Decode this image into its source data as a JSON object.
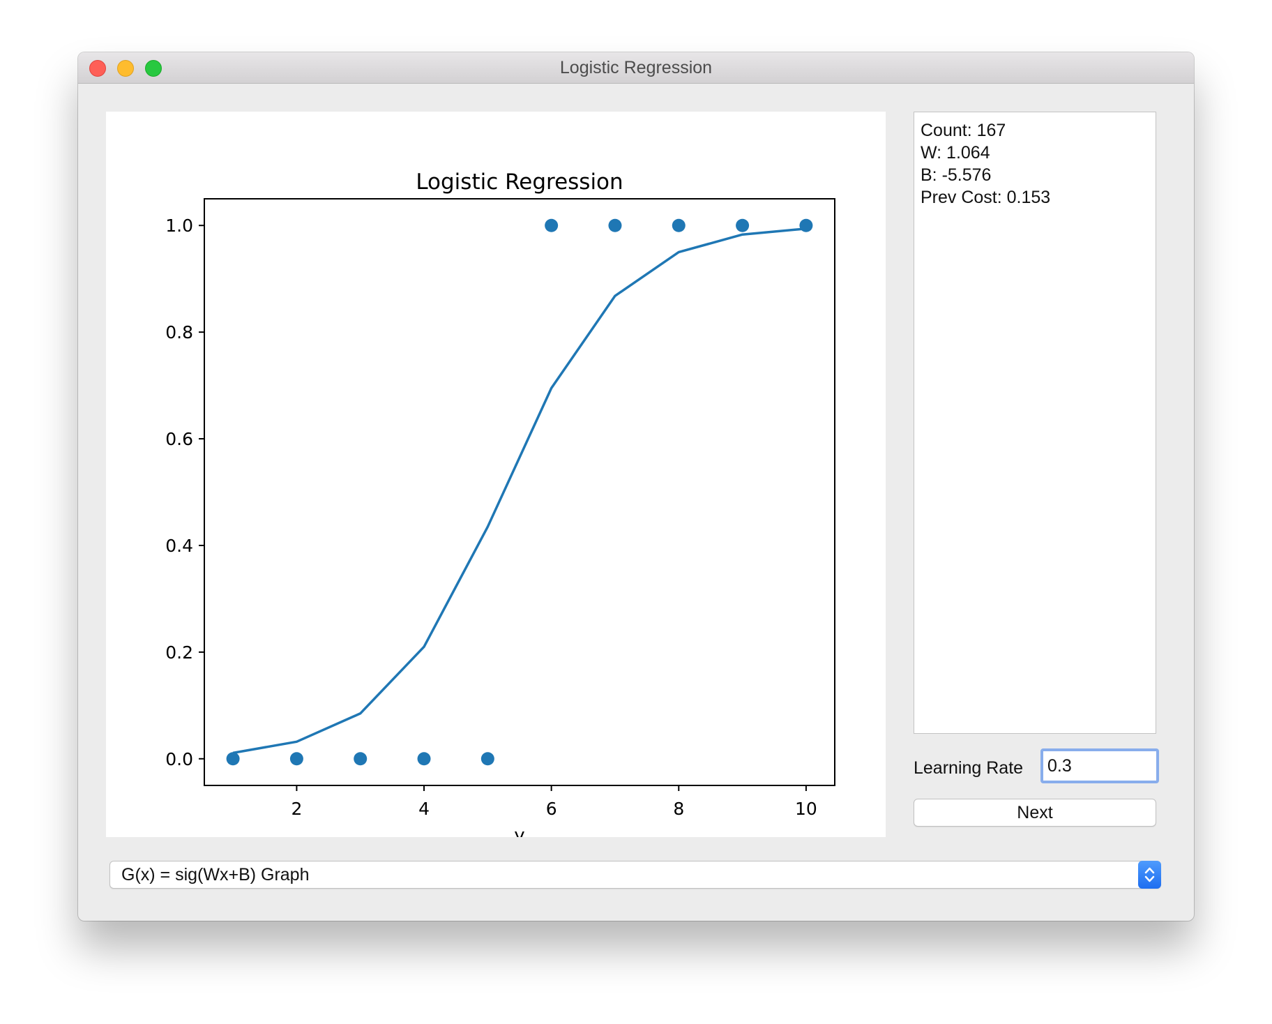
{
  "window": {
    "title": "Logistic Regression"
  },
  "info": {
    "lines": [
      "Count: 167",
      "W: 1.064",
      "B: -5.576",
      "Prev Cost: 0.153"
    ]
  },
  "controls": {
    "learning_rate_label": "Learning Rate",
    "learning_rate_value": "0.3",
    "next_label": "Next"
  },
  "graph_select": {
    "selected": "G(x) = sig(Wx+B) Graph"
  },
  "chart_data": {
    "type": "scatter",
    "title": "Logistic Regression",
    "xlabel": "y",
    "ylabel": "",
    "xlim": [
      0.55,
      10.45
    ],
    "ylim": [
      -0.05,
      1.05
    ],
    "xticks": [
      2,
      4,
      6,
      8,
      10
    ],
    "yticks": [
      0.0,
      0.2,
      0.4,
      0.6,
      0.8,
      1.0
    ],
    "grid": false,
    "color": "#1f77b4",
    "series": [
      {
        "kind": "scatter",
        "x": [
          1,
          2,
          3,
          4,
          5,
          6,
          7,
          8,
          9,
          10
        ],
        "y": [
          0,
          0,
          0,
          0,
          0,
          1,
          1,
          1,
          1,
          1
        ]
      },
      {
        "kind": "line",
        "x": [
          1,
          2,
          3,
          4,
          5,
          6,
          7,
          8,
          9,
          10
        ],
        "y": [
          0.011,
          0.032,
          0.085,
          0.21,
          0.435,
          0.695,
          0.868,
          0.95,
          0.983,
          0.994
        ]
      }
    ]
  }
}
